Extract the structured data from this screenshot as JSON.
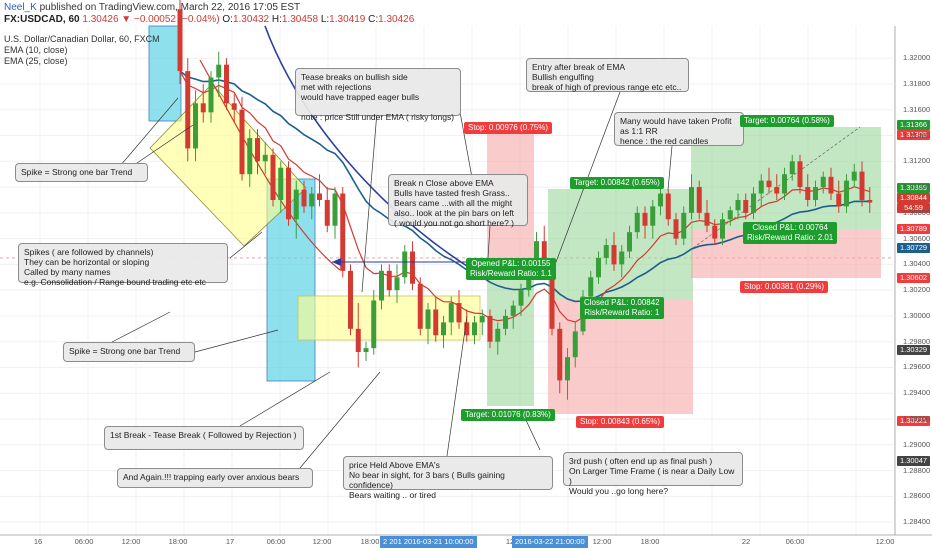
{
  "header": {
    "author": "Neel_K",
    "published_text": "published on TradingView.com, March 22, 2016 17:05 EST",
    "symbol_line": "FX:USDCAD, 60",
    "last": "1.30426",
    "change": "−0.00052 (−0.04%)",
    "o_label": "O:",
    "o": "1.30432",
    "h_label": "H:",
    "h": "1.30458",
    "l_label": "L:",
    "l": "1.30419",
    "c_label": "C:",
    "c": "1.30426"
  },
  "legend": {
    "title": "U.S. Dollar/Canadian Dollar, 60, FXCM",
    "ema10": "EMA (10, close)",
    "ema25": "EMA (25, close)"
  },
  "colors": {
    "up": "#3a9e3a",
    "down": "#d23a32",
    "ema10": "#d23a32",
    "ema25": "#1c5f8e",
    "ema_blue": "#2c3e9e",
    "stop_zone": "#f7a9a9",
    "target_zone": "#9bd79b",
    "spike_box": "#5fd3e6",
    "channel_box": "#ffff8c"
  },
  "callouts": {
    "spike1": "Spike = Strong one bar Trend",
    "spikes_note": "Spikes  ( are followed by channels)\nThey can be horizontal or sloping\nCalled by many names\ne.g.  Consolidation / Range bound trading  etc etc",
    "spike2": "Spike = Strong one bar Trend",
    "tease_top": "Tease breaks on bullish side\nmet with rejections\nwould have trapped eager bulls\n\nnote : price Still under EMA ( risky longs)",
    "break_ema": "Break n Close above EMA\nBulls have tasted fresh Grass..\nBears came ...with all the might\nalso.. look at the pin bars on left\n( would you not go short here? )",
    "entry": "Entry after break of EMA\nBullish engulfing\nbreak of high of previous range etc etc..",
    "profit": "Many would have taken Profit\nas 1:1 RR\nhence : the red candles",
    "first_break": "1st Break - Tease Break ( Followed by Rejection )",
    "again": "And Again.!!!  trapping early over anxious bears",
    "held": "price Held Above EMA's\nNo bear in sight, for 3 bars ( Bulls gaining confidence)\nBears waiting .. or tired",
    "third_push": "3rd push ( often end up as final push )\nOn Larger Time Frame ( is near a Daily Low )\nWould you ..go long here?"
  },
  "trade_labels": {
    "stop1": "Stop: 0.00976 (0.75%)",
    "target1": "Target: 0.01076 (0.83%)",
    "opened": "Opened P&L: 0.00155\nRisk/Reward Ratio: 1.1",
    "target2": "Target: 0.00842 (0.65%)",
    "stop2": "Stop: 0.00843 (0.65%)",
    "closed2": "Closed P&L: 0.00842\nRisk/Reward Ratio: 1",
    "target3": "Target: 0.00764 (0.58%)",
    "closed3": "Closed P&L: 0.00764\nRisk/Reward Ratio: 2.01",
    "stop3": "Stop: 0.00381 (0.29%)"
  },
  "price_tags": [
    {
      "text": "1.31366",
      "color": "#1e9c2e"
    },
    {
      "text": "1.31305",
      "color": "#f03c3c"
    },
    {
      "text": "1.30889",
      "color": "#1e9c2e"
    },
    {
      "text": "1.30844",
      "color": "#d23a32"
    },
    {
      "text": "54:59",
      "color": "#d23a32"
    },
    {
      "text": "1.30789",
      "color": "#f03c3c"
    },
    {
      "text": "1.30729",
      "color": "#1c5f8e"
    },
    {
      "text": "1.30602",
      "color": "#f03c3c"
    },
    {
      "text": "1.30329",
      "color": "#444444"
    },
    {
      "text": "1.30221",
      "color": "#f03c3c"
    },
    {
      "text": "1.30047",
      "color": "#444444"
    }
  ],
  "y_ticks": [
    "1.32000",
    "1.31800",
    "1.31600",
    "1.31400",
    "1.31200",
    "1.31000",
    "1.30800",
    "1.30600",
    "1.30400",
    "1.30200",
    "1.30000",
    "1.29800",
    "1.29600",
    "1.29400",
    "1.29200",
    "1.29000",
    "1.28800",
    "1.28600",
    "1.28400"
  ],
  "x_ticks": [
    "16",
    "06:00",
    "12:00",
    "18:00",
    "17",
    "06:00",
    "12:00",
    "18:00",
    "12",
    "06:00",
    "12:00",
    "18:00",
    "22",
    "06:00",
    "12:00"
  ],
  "time_highlights": [
    "2 201 2016-03-21 10:00:00",
    "2016-03-22 21:00:00"
  ],
  "chart_data": {
    "type": "candlestick",
    "symbol": "FX:USDCAD",
    "timeframe": "60",
    "ylim": [
      1.283,
      1.3225
    ],
    "candles": [
      [
        1.3238,
        1.325,
        1.318,
        1.319
      ],
      [
        1.319,
        1.32,
        1.312,
        1.313
      ],
      [
        1.313,
        1.3175,
        1.312,
        1.3165
      ],
      [
        1.3165,
        1.318,
        1.315,
        1.3158
      ],
      [
        1.3158,
        1.319,
        1.315,
        1.3185
      ],
      [
        1.3185,
        1.3205,
        1.317,
        1.3195
      ],
      [
        1.3195,
        1.32,
        1.316,
        1.3165
      ],
      [
        1.3165,
        1.3172,
        1.315,
        1.316
      ],
      [
        1.316,
        1.317,
        1.3105,
        1.311
      ],
      [
        1.311,
        1.3145,
        1.31,
        1.3138
      ],
      [
        1.3138,
        1.3145,
        1.311,
        1.312
      ],
      [
        1.312,
        1.3135,
        1.311,
        1.3125
      ],
      [
        1.3125,
        1.313,
        1.3085,
        1.309
      ],
      [
        1.309,
        1.312,
        1.308,
        1.3115
      ],
      [
        1.3115,
        1.312,
        1.307,
        1.3075
      ],
      [
        1.3075,
        1.3105,
        1.306,
        1.3098
      ],
      [
        1.3098,
        1.3105,
        1.308,
        1.3085
      ],
      [
        1.3085,
        1.31,
        1.3075,
        1.3095
      ],
      [
        1.3095,
        1.311,
        1.3085,
        1.309
      ],
      [
        1.309,
        1.31,
        1.3065,
        1.307
      ],
      [
        1.307,
        1.31,
        1.306,
        1.3095
      ],
      [
        1.3095,
        1.31,
        1.303,
        1.3035
      ],
      [
        1.3035,
        1.304,
        1.2985,
        1.299
      ],
      [
        1.299,
        1.301,
        1.296,
        1.2972
      ],
      [
        1.2972,
        1.298,
        1.2965,
        1.2975
      ],
      [
        1.2975,
        1.302,
        1.297,
        1.3012
      ],
      [
        1.3012,
        1.304,
        1.3005,
        1.3035
      ],
      [
        1.3035,
        1.304,
        1.3015,
        1.302
      ],
      [
        1.302,
        1.304,
        1.301,
        1.303
      ],
      [
        1.303,
        1.3055,
        1.3025,
        1.305
      ],
      [
        1.305,
        1.3058,
        1.302,
        1.3025
      ],
      [
        1.3025,
        1.303,
        1.2985,
        1.299
      ],
      [
        1.299,
        1.301,
        1.2978,
        1.3005
      ],
      [
        1.3005,
        1.3015,
        1.298,
        1.2985
      ],
      [
        1.2985,
        1.3,
        1.2975,
        1.2995
      ],
      [
        1.2995,
        1.3015,
        1.2985,
        1.301
      ],
      [
        1.301,
        1.302,
        1.299,
        1.2995
      ],
      [
        1.2995,
        1.3005,
        1.298,
        1.2985
      ],
      [
        1.2985,
        1.3,
        1.2978,
        1.2995
      ],
      [
        1.2995,
        1.3005,
        1.2985,
        1.3
      ],
      [
        1.3,
        1.3005,
        1.2975,
        1.298
      ],
      [
        1.298,
        1.2995,
        1.297,
        1.299
      ],
      [
        1.299,
        1.3005,
        1.2985,
        1.3
      ],
      [
        1.3,
        1.3012,
        1.299,
        1.3008
      ],
      [
        1.3008,
        1.3025,
        1.3,
        1.302
      ],
      [
        1.302,
        1.304,
        1.3015,
        1.3035
      ],
      [
        1.3035,
        1.3065,
        1.303,
        1.3058
      ],
      [
        1.3058,
        1.307,
        1.303,
        1.3035
      ],
      [
        1.3035,
        1.304,
        1.2985,
        1.299
      ],
      [
        1.299,
        1.2995,
        1.294,
        1.295
      ],
      [
        1.295,
        1.2975,
        1.2935,
        1.2968
      ],
      [
        1.2968,
        1.2995,
        1.296,
        1.2988
      ],
      [
        1.2988,
        1.302,
        1.2985,
        1.3015
      ],
      [
        1.3015,
        1.3035,
        1.301,
        1.303
      ],
      [
        1.303,
        1.305,
        1.3025,
        1.3045
      ],
      [
        1.3045,
        1.306,
        1.304,
        1.3055
      ],
      [
        1.3055,
        1.3065,
        1.3035,
        1.304
      ],
      [
        1.304,
        1.3055,
        1.303,
        1.305
      ],
      [
        1.305,
        1.307,
        1.3045,
        1.3065
      ],
      [
        1.3065,
        1.3085,
        1.306,
        1.308
      ],
      [
        1.308,
        1.3085,
        1.306,
        1.307
      ],
      [
        1.307,
        1.309,
        1.306,
        1.3085
      ],
      [
        1.3085,
        1.31,
        1.3078,
        1.3095
      ],
      [
        1.3095,
        1.3098,
        1.307,
        1.3075
      ],
      [
        1.3075,
        1.308,
        1.3055,
        1.306
      ],
      [
        1.306,
        1.3085,
        1.3055,
        1.308
      ],
      [
        1.308,
        1.311,
        1.3075,
        1.31
      ],
      [
        1.31,
        1.3105,
        1.3075,
        1.308
      ],
      [
        1.308,
        1.309,
        1.3065,
        1.307
      ],
      [
        1.307,
        1.3075,
        1.3055,
        1.306
      ],
      [
        1.306,
        1.308,
        1.3055,
        1.3075
      ],
      [
        1.3075,
        1.3085,
        1.307,
        1.3082
      ],
      [
        1.3082,
        1.3095,
        1.3075,
        1.309
      ],
      [
        1.309,
        1.3095,
        1.3075,
        1.308
      ],
      [
        1.308,
        1.31,
        1.3075,
        1.3095
      ],
      [
        1.3095,
        1.311,
        1.3085,
        1.3105
      ],
      [
        1.3105,
        1.3115,
        1.3095,
        1.31
      ],
      [
        1.31,
        1.311,
        1.309,
        1.3095
      ],
      [
        1.3095,
        1.3115,
        1.309,
        1.311
      ],
      [
        1.311,
        1.3125,
        1.3105,
        1.312
      ],
      [
        1.312,
        1.3125,
        1.3095,
        1.31
      ],
      [
        1.31,
        1.311,
        1.3085,
        1.309
      ],
      [
        1.309,
        1.3105,
        1.3085,
        1.31
      ],
      [
        1.31,
        1.3112,
        1.3095,
        1.3108
      ],
      [
        1.3108,
        1.3115,
        1.309,
        1.3095
      ],
      [
        1.3095,
        1.3105,
        1.308,
        1.3085
      ],
      [
        1.3085,
        1.311,
        1.308,
        1.3105
      ],
      [
        1.3105,
        1.3118,
        1.31,
        1.3112
      ],
      [
        1.3112,
        1.312,
        1.3085,
        1.309
      ],
      [
        1.309,
        1.31,
        1.308,
        1.3088
      ]
    ]
  }
}
